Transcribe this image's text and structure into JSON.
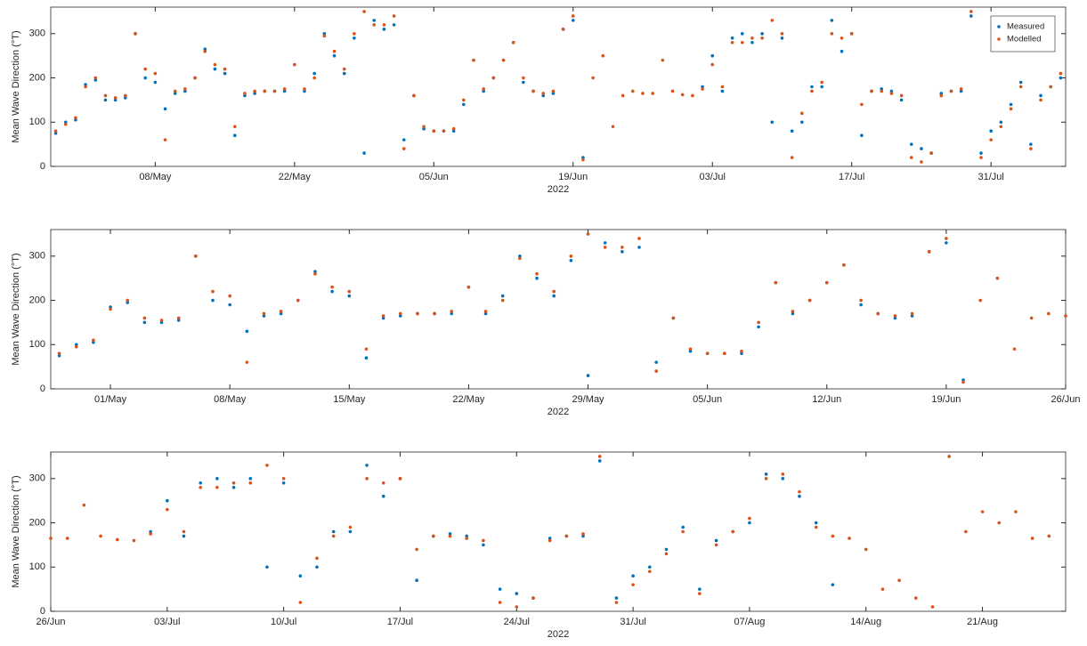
{
  "chart_data": [
    {
      "type": "scatter",
      "ylabel": "Mean Wave Direction (°T)",
      "xlabel": "2022",
      "legend": "upper right",
      "xlim": [
        "2022-04-27T12:00",
        "2022-08-07T12:00"
      ],
      "ylim": [
        0,
        360
      ],
      "yticks": [
        0,
        100,
        200,
        300
      ],
      "xticks": [
        {
          "value": "2022-05-08",
          "label": "08/May"
        },
        {
          "value": "2022-05-22",
          "label": "22/May"
        },
        {
          "value": "2022-06-05",
          "label": "05/Jun"
        },
        {
          "value": "2022-06-19",
          "label": "19/Jun"
        },
        {
          "value": "2022-07-03",
          "label": "03/Jul"
        },
        {
          "value": "2022-07-17",
          "label": "17/Jul"
        },
        {
          "value": "2022-07-31",
          "label": "31/Jul"
        }
      ],
      "x": [
        "2022-04-28",
        "2022-04-29",
        "2022-04-30",
        "2022-05-01",
        "2022-05-02",
        "2022-05-03",
        "2022-05-04",
        "2022-05-05",
        "2022-05-06",
        "2022-05-07",
        "2022-05-08",
        "2022-05-09",
        "2022-05-10",
        "2022-05-11",
        "2022-05-12",
        "2022-05-13",
        "2022-05-14",
        "2022-05-15",
        "2022-05-16",
        "2022-05-17",
        "2022-05-18",
        "2022-05-19",
        "2022-05-20",
        "2022-05-21",
        "2022-05-22",
        "2022-05-23",
        "2022-05-24",
        "2022-05-25",
        "2022-05-26",
        "2022-05-27",
        "2022-05-28",
        "2022-05-29",
        "2022-05-30",
        "2022-05-31",
        "2022-06-01",
        "2022-06-02",
        "2022-06-03",
        "2022-06-04",
        "2022-06-05",
        "2022-06-06",
        "2022-06-07",
        "2022-06-08",
        "2022-06-09",
        "2022-06-10",
        "2022-06-11",
        "2022-06-12",
        "2022-06-13",
        "2022-06-14",
        "2022-06-15",
        "2022-06-16",
        "2022-06-17",
        "2022-06-18",
        "2022-06-19",
        "2022-06-20",
        "2022-06-21",
        "2022-06-22",
        "2022-06-23",
        "2022-06-24",
        "2022-06-25",
        "2022-06-26",
        "2022-06-27",
        "2022-06-28",
        "2022-06-29",
        "2022-06-30",
        "2022-07-01",
        "2022-07-02",
        "2022-07-03",
        "2022-07-04",
        "2022-07-05",
        "2022-07-06",
        "2022-07-07",
        "2022-07-08",
        "2022-07-09",
        "2022-07-10",
        "2022-07-11",
        "2022-07-12",
        "2022-07-13",
        "2022-07-14",
        "2022-07-15",
        "2022-07-16",
        "2022-07-17",
        "2022-07-18",
        "2022-07-19",
        "2022-07-20",
        "2022-07-21",
        "2022-07-22",
        "2022-07-23",
        "2022-07-24",
        "2022-07-25",
        "2022-07-26",
        "2022-07-27",
        "2022-07-28",
        "2022-07-29",
        "2022-07-30",
        "2022-07-31",
        "2022-08-01",
        "2022-08-02",
        "2022-08-03",
        "2022-08-04",
        "2022-08-05",
        "2022-08-06",
        "2022-08-07"
      ],
      "series": [
        {
          "name": "Measured",
          "color": "#0072bd",
          "values": [
            75,
            100,
            105,
            185,
            195,
            150,
            150,
            155,
            300,
            200,
            190,
            130,
            165,
            170,
            200,
            265,
            220,
            210,
            70,
            160,
            165,
            170,
            170,
            170,
            230,
            170,
            210,
            300,
            250,
            210,
            290,
            30,
            330,
            310,
            320,
            60,
            160,
            85,
            80,
            80,
            80,
            140,
            240,
            170,
            200,
            240,
            280,
            190,
            170,
            160,
            165,
            310,
            330,
            20,
            null,
            null,
            null,
            null,
            null,
            null,
            null,
            null,
            null,
            null,
            null,
            180,
            250,
            170,
            290,
            300,
            280,
            300,
            100,
            290,
            80,
            100,
            180,
            180,
            330,
            260,
            300,
            70,
            170,
            175,
            170,
            150,
            50,
            40,
            30,
            165,
            170,
            170,
            340,
            30,
            80,
            100,
            140,
            190,
            50,
            160,
            180,
            200
          ]
        },
        {
          "name": "Modelled",
          "color": "#d95319",
          "values": [
            80,
            95,
            110,
            180,
            200,
            160,
            155,
            160,
            300,
            220,
            210,
            60,
            170,
            175,
            200,
            260,
            230,
            220,
            90,
            165,
            170,
            170,
            170,
            175,
            230,
            175,
            200,
            295,
            260,
            220,
            300,
            350,
            320,
            320,
            340,
            40,
            160,
            90,
            80,
            80,
            85,
            150,
            240,
            175,
            200,
            240,
            280,
            200,
            170,
            165,
            170,
            310,
            340,
            15,
            200,
            250,
            90,
            160,
            170,
            165,
            165,
            240,
            170,
            162,
            160,
            175,
            230,
            180,
            280,
            280,
            290,
            290,
            330,
            300,
            20,
            120,
            170,
            190,
            300,
            290,
            300,
            140,
            170,
            170,
            165,
            160,
            20,
            10,
            30,
            160,
            170,
            175,
            350,
            20,
            60,
            90,
            130,
            180,
            40,
            150,
            180,
            210
          ]
        }
      ]
    },
    {
      "type": "scatter",
      "ylabel": "Mean Wave Direction (°T)",
      "xlabel": "2022",
      "xlim": [
        "2022-04-27T12:00",
        "2022-06-26"
      ],
      "ylim": [
        0,
        360
      ],
      "yticks": [
        0,
        100,
        200,
        300
      ],
      "xticks": [
        {
          "value": "2022-05-01",
          "label": "01/May"
        },
        {
          "value": "2022-05-08",
          "label": "08/May"
        },
        {
          "value": "2022-05-15",
          "label": "15/May"
        },
        {
          "value": "2022-05-22",
          "label": "22/May"
        },
        {
          "value": "2022-05-29",
          "label": "29/May"
        },
        {
          "value": "2022-06-05",
          "label": "05/Jun"
        },
        {
          "value": "2022-06-12",
          "label": "12/Jun"
        },
        {
          "value": "2022-06-19",
          "label": "19/Jun"
        },
        {
          "value": "2022-06-26",
          "label": "26/Jun"
        }
      ],
      "x": [
        "2022-04-28",
        "2022-04-29",
        "2022-04-30",
        "2022-05-01",
        "2022-05-02",
        "2022-05-03",
        "2022-05-04",
        "2022-05-05",
        "2022-05-06",
        "2022-05-07",
        "2022-05-08",
        "2022-05-09",
        "2022-05-10",
        "2022-05-11",
        "2022-05-12",
        "2022-05-13",
        "2022-05-14",
        "2022-05-15",
        "2022-05-16",
        "2022-05-17",
        "2022-05-18",
        "2022-05-19",
        "2022-05-20",
        "2022-05-21",
        "2022-05-22",
        "2022-05-23",
        "2022-05-24",
        "2022-05-25",
        "2022-05-26",
        "2022-05-27",
        "2022-05-28",
        "2022-05-29",
        "2022-05-30",
        "2022-05-31",
        "2022-06-01",
        "2022-06-02",
        "2022-06-03",
        "2022-06-04",
        "2022-06-05",
        "2022-06-06",
        "2022-06-07",
        "2022-06-08",
        "2022-06-09",
        "2022-06-10",
        "2022-06-11",
        "2022-06-12",
        "2022-06-13",
        "2022-06-14",
        "2022-06-15",
        "2022-06-16",
        "2022-06-17",
        "2022-06-18",
        "2022-06-19",
        "2022-06-20",
        "2022-06-21",
        "2022-06-22",
        "2022-06-23",
        "2022-06-24",
        "2022-06-25",
        "2022-06-26"
      ],
      "series": [
        {
          "name": "Measured",
          "color": "#0072bd",
          "values": [
            75,
            100,
            105,
            185,
            195,
            150,
            150,
            155,
            300,
            200,
            190,
            130,
            165,
            170,
            200,
            265,
            220,
            210,
            70,
            160,
            165,
            170,
            170,
            170,
            230,
            170,
            210,
            300,
            250,
            210,
            290,
            30,
            330,
            310,
            320,
            60,
            160,
            85,
            80,
            80,
            80,
            140,
            240,
            170,
            200,
            240,
            280,
            190,
            170,
            160,
            165,
            310,
            330,
            20,
            null,
            null,
            null,
            null,
            null,
            null
          ]
        },
        {
          "name": "Modelled",
          "color": "#d95319",
          "values": [
            80,
            95,
            110,
            180,
            200,
            160,
            155,
            160,
            300,
            220,
            210,
            60,
            170,
            175,
            200,
            260,
            230,
            220,
            90,
            165,
            170,
            170,
            170,
            175,
            230,
            175,
            200,
            295,
            260,
            220,
            300,
            350,
            320,
            320,
            340,
            40,
            160,
            90,
            80,
            80,
            85,
            150,
            240,
            175,
            200,
            240,
            280,
            200,
            170,
            165,
            170,
            310,
            340,
            15,
            200,
            250,
            90,
            160,
            170,
            165
          ]
        }
      ]
    },
    {
      "type": "scatter",
      "ylabel": "Mean Wave Direction (°T)",
      "xlabel": "2022",
      "xlim": [
        "2022-06-26",
        "2022-08-26"
      ],
      "ylim": [
        0,
        360
      ],
      "yticks": [
        0,
        100,
        200,
        300
      ],
      "xticks": [
        {
          "value": "2022-06-26",
          "label": "26/Jun"
        },
        {
          "value": "2022-07-03",
          "label": "03/Jul"
        },
        {
          "value": "2022-07-10",
          "label": "10/Jul"
        },
        {
          "value": "2022-07-17",
          "label": "17/Jul"
        },
        {
          "value": "2022-07-24",
          "label": "24/Jul"
        },
        {
          "value": "2022-07-31",
          "label": "31/Jul"
        },
        {
          "value": "2022-08-07",
          "label": "07/Aug"
        },
        {
          "value": "2022-08-14",
          "label": "14/Aug"
        },
        {
          "value": "2022-08-21",
          "label": "21/Aug"
        }
      ],
      "x": [
        "2022-06-26",
        "2022-06-27",
        "2022-06-28",
        "2022-06-29",
        "2022-06-30",
        "2022-07-01",
        "2022-07-02",
        "2022-07-03",
        "2022-07-04",
        "2022-07-05",
        "2022-07-06",
        "2022-07-07",
        "2022-07-08",
        "2022-07-09",
        "2022-07-10",
        "2022-07-11",
        "2022-07-12",
        "2022-07-13",
        "2022-07-14",
        "2022-07-15",
        "2022-07-16",
        "2022-07-17",
        "2022-07-18",
        "2022-07-19",
        "2022-07-20",
        "2022-07-21",
        "2022-07-22",
        "2022-07-23",
        "2022-07-24",
        "2022-07-25",
        "2022-07-26",
        "2022-07-27",
        "2022-07-28",
        "2022-07-29",
        "2022-07-30",
        "2022-07-31",
        "2022-08-01",
        "2022-08-02",
        "2022-08-03",
        "2022-08-04",
        "2022-08-05",
        "2022-08-06",
        "2022-08-07",
        "2022-08-08",
        "2022-08-09",
        "2022-08-10",
        "2022-08-11",
        "2022-08-12",
        "2022-08-13",
        "2022-08-14",
        "2022-08-15",
        "2022-08-16",
        "2022-08-17",
        "2022-08-18",
        "2022-08-19",
        "2022-08-20",
        "2022-08-21",
        "2022-08-22",
        "2022-08-23",
        "2022-08-24",
        "2022-08-25"
      ],
      "series": [
        {
          "name": "Measured",
          "color": "#0072bd",
          "values": [
            null,
            null,
            null,
            null,
            null,
            null,
            180,
            250,
            170,
            290,
            300,
            280,
            300,
            100,
            290,
            80,
            100,
            180,
            180,
            330,
            260,
            300,
            70,
            170,
            175,
            170,
            150,
            50,
            40,
            30,
            165,
            170,
            170,
            340,
            30,
            80,
            100,
            140,
            190,
            50,
            160,
            180,
            200,
            310,
            300,
            260,
            200,
            60,
            null,
            null,
            null,
            null,
            null,
            null,
            null,
            null,
            null,
            null,
            null,
            null,
            null
          ]
        },
        {
          "name": "Modelled",
          "color": "#d95319",
          "values": [
            165,
            165,
            240,
            170,
            162,
            160,
            175,
            230,
            180,
            280,
            280,
            290,
            290,
            330,
            300,
            20,
            120,
            170,
            190,
            300,
            290,
            300,
            140,
            170,
            170,
            165,
            160,
            20,
            10,
            30,
            160,
            170,
            175,
            350,
            20,
            60,
            90,
            130,
            180,
            40,
            150,
            180,
            210,
            300,
            310,
            270,
            190,
            170,
            165,
            140,
            50,
            70,
            30,
            10,
            350,
            180,
            225,
            200,
            225,
            165,
            170
          ]
        }
      ]
    }
  ]
}
